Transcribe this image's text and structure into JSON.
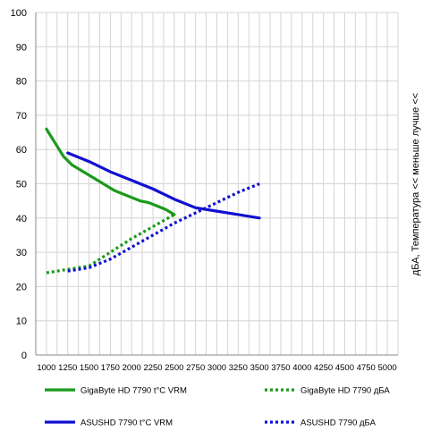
{
  "chart_data": {
    "type": "line",
    "title": "",
    "xlabel": "",
    "ylabel": "дБА, Температура <<  меньше лучше  <<",
    "xlim": [
      875,
      5125
    ],
    "ylim": [
      0,
      100
    ],
    "grid": true,
    "legend_position": "bottom",
    "x_ticks": [
      "1000",
      "1250",
      "1500",
      "1750",
      "2000",
      "2250",
      "2500",
      "2750",
      "3000",
      "3250",
      "3500",
      "3750",
      "4000",
      "4250",
      "4500",
      "4750",
      "5000"
    ],
    "y_ticks": [
      "0",
      "10",
      "20",
      "30",
      "40",
      "50",
      "60",
      "70",
      "80",
      "90",
      "100"
    ],
    "series": [
      {
        "name": "GigaByte HD 7790 t°C VRM",
        "color": "#1a9a1a",
        "style": "solid",
        "x": [
          1000,
          1100,
          1200,
          1300,
          1400,
          1500,
          1600,
          1700,
          1800,
          1900,
          2000,
          2100,
          2200,
          2300,
          2400,
          2500
        ],
        "y": [
          66,
          62,
          58,
          55.5,
          54,
          52.5,
          51,
          49.5,
          48,
          47,
          46,
          45,
          44.5,
          43.5,
          42.5,
          41
        ]
      },
      {
        "name": "GigaByte HD 7790 дБА",
        "color": "#1a9a1a",
        "style": "dotted",
        "x": [
          1000,
          1250,
          1500,
          1750,
          2000,
          2250,
          2500
        ],
        "y": [
          24,
          25,
          26,
          30,
          34,
          37.5,
          41
        ]
      },
      {
        "name": "ASUSHD 7790 t°C VRM",
        "color": "#1010d0",
        "style": "solid",
        "x": [
          1250,
          1500,
          1750,
          2000,
          2250,
          2500,
          2750,
          3000,
          3250,
          3500
        ],
        "y": [
          59,
          56.5,
          53.5,
          51,
          48.5,
          45.5,
          43,
          42,
          41,
          40
        ]
      },
      {
        "name": "ASUSHD 7790 дБА",
        "color": "#1010d0",
        "style": "dotted",
        "x": [
          1250,
          1500,
          1750,
          2000,
          2250,
          2500,
          2750,
          3000,
          3250,
          3500
        ],
        "y": [
          24.5,
          25.5,
          28,
          31.5,
          35,
          38.5,
          41.5,
          44.5,
          47.5,
          50
        ]
      }
    ]
  }
}
